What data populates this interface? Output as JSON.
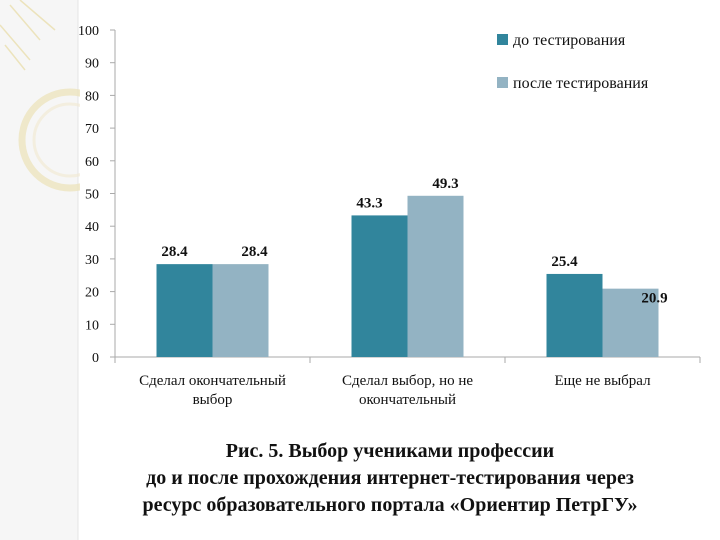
{
  "chart_data": {
    "type": "bar",
    "categories": [
      [
        "Сделал окончательный",
        "выбор"
      ],
      [
        "Сделал выбор, но не",
        "окончательный"
      ],
      [
        "Еще не выбрал"
      ]
    ],
    "series": [
      {
        "name": "до тестирования",
        "values": [
          28.4,
          43.3,
          25.4
        ],
        "color": "#31859c"
      },
      {
        "name": "после тестирования",
        "values": [
          28.4,
          49.3,
          20.9
        ],
        "color": "#93b3c3"
      }
    ],
    "ylim": [
      0,
      100
    ],
    "yticks": [
      "0",
      "10",
      "20",
      "30",
      "40",
      "50",
      "60",
      "70",
      "80",
      "90",
      "100"
    ],
    "data_labels": [
      [
        "28.4",
        "43.3",
        "25.4"
      ],
      [
        "28.4",
        "49.3",
        "20.9"
      ]
    ],
    "grid": false,
    "legend_position": "top-right"
  },
  "caption": {
    "line1": "Рис. 5. Выбор учениками профессии",
    "line2": "до и после прохождения интернет-тестирования через",
    "line3": "ресурс образовательного портала «Ориентир ПетрГУ»"
  },
  "colors": {
    "axis": "#aaaaaa",
    "text": "#111111",
    "decoration": "#e8dca8"
  }
}
